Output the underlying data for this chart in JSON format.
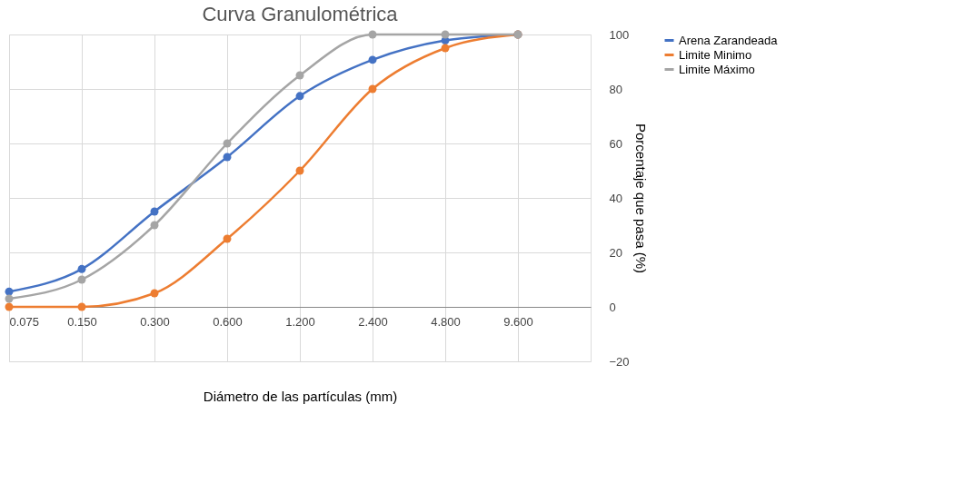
{
  "chart_data": {
    "type": "line",
    "title": "Curva Granulométrica",
    "xlabel": "Diámetro de las partículas (mm)",
    "ylabel": "Porcentaje que pasa (%)",
    "categories": [
      "0.075",
      "0.150",
      "0.300",
      "0.600",
      "1.200",
      "2.400",
      "4.800",
      "9.600"
    ],
    "series": [
      {
        "name": "Arena Zarandeada",
        "color": "#4472c4",
        "values": [
          5.6,
          13.9,
          35,
          55,
          77.4,
          90.7,
          97.8,
          100
        ]
      },
      {
        "name": "Limite Minimo",
        "color": "#ed7d31",
        "values": [
          0,
          0,
          5,
          25,
          50,
          80,
          95,
          100
        ]
      },
      {
        "name": "Limite Máximo",
        "color": "#a5a5a5",
        "values": [
          3,
          10,
          30,
          60,
          85,
          100,
          100,
          100
        ]
      }
    ],
    "ylim": [
      -20,
      100
    ],
    "yticks": [
      -20,
      0,
      20,
      40,
      60,
      80,
      100
    ],
    "grid": true,
    "legend": "right",
    "marker": "circle",
    "line_style": "solid"
  }
}
